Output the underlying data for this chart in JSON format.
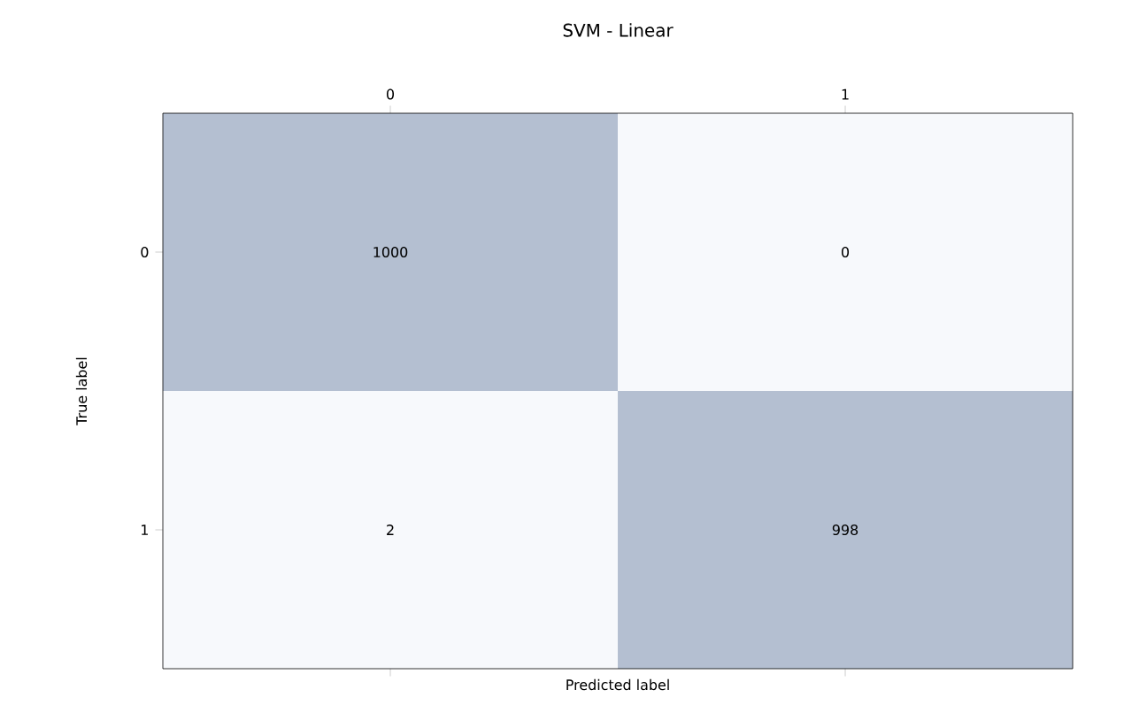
{
  "chart_data": {
    "type": "heatmap",
    "title": "SVM - Linear",
    "xlabel": "Predicted label",
    "ylabel": "True label",
    "categories": [
      "0",
      "1"
    ],
    "y_categories": [
      "0",
      "1"
    ],
    "cells": [
      [
        1000,
        0
      ],
      [
        2,
        998
      ]
    ],
    "colors": [
      "#f7f9fc",
      "#b4bfd1"
    ],
    "data_labels": true
  }
}
